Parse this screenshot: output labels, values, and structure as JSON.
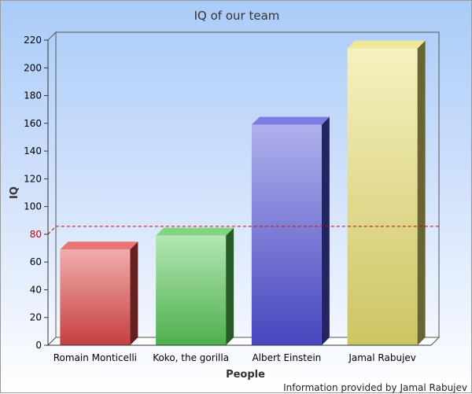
{
  "chart_data": {
    "type": "bar",
    "title": "IQ of our team",
    "xlabel": "People",
    "ylabel": "IQ",
    "categories": [
      "Romain Monticelli",
      "Koko, the gorilla",
      "Albert Einstein",
      "Jamal Rabujev"
    ],
    "values": [
      69,
      79,
      159,
      214
    ],
    "colors": [
      "#e04848",
      "#58c858",
      "#5050d8",
      "#e8e070"
    ],
    "ylim": [
      0,
      220
    ],
    "yticks": [
      0,
      20,
      40,
      60,
      80,
      100,
      120,
      140,
      160,
      180,
      200,
      220
    ],
    "reference_line": {
      "value": 80,
      "color": "#cc0000",
      "style": "dashed"
    },
    "grid": false,
    "style": "3d"
  },
  "footer": "Information provided by Jamal Rabujev"
}
